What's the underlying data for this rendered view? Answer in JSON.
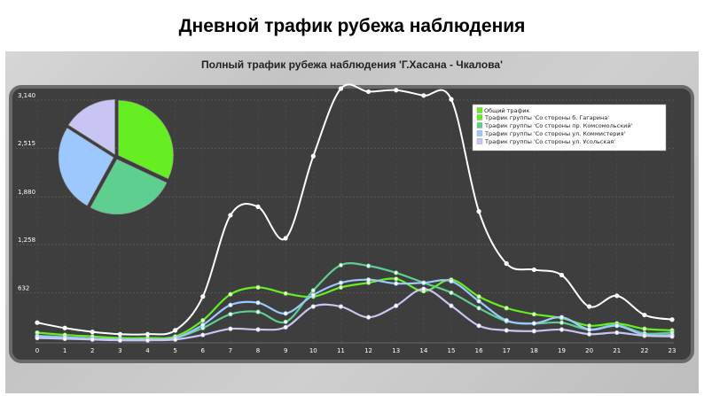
{
  "page": {
    "title": "Дневной трафик рубежа наблюдения"
  },
  "chart_data": {
    "type": "line",
    "title": "Полный трафик рубежа наблюдения 'Г.Хасана - Чкалова'",
    "x": [
      0,
      1,
      2,
      3,
      4,
      5,
      6,
      7,
      8,
      9,
      10,
      11,
      12,
      13,
      14,
      15,
      16,
      17,
      18,
      19,
      20,
      21,
      22,
      23
    ],
    "y_ticks": [
      "632",
      "1,258",
      "1,880",
      "2,515",
      "3,140"
    ],
    "ylim": [
      0,
      3140
    ],
    "grid": true,
    "legend_position": "top-right",
    "legend_title": "Общий трафик",
    "series": [
      {
        "name": "Общий трафик",
        "color": "#ffffff",
        "values": [
          240,
          170,
          120,
          90,
          90,
          140,
          580,
          1640,
          1750,
          1340,
          2410,
          3290,
          3250,
          3270,
          3200,
          3150,
          1690,
          1010,
          930,
          860,
          450,
          590,
          340,
          280
        ]
      },
      {
        "name": "Трафик группы 'Со стороны б. Гагарина'",
        "color": "#66ee22",
        "values": [
          110,
          80,
          60,
          40,
          40,
          60,
          270,
          610,
          700,
          620,
          580,
          700,
          760,
          810,
          650,
          800,
          580,
          430,
          350,
          300,
          200,
          230,
          160,
          140
        ]
      },
      {
        "name": "Трафик группы 'Со стороны пр. Комсомольский'",
        "color": "#5fcf90",
        "values": [
          70,
          50,
          30,
          20,
          20,
          40,
          170,
          350,
          380,
          250,
          660,
          990,
          980,
          890,
          760,
          630,
          430,
          260,
          230,
          240,
          150,
          210,
          100,
          110
        ]
      },
      {
        "name": "Трафик группы 'Со стороны ул. Коммистерия'",
        "color": "#9cc8ff",
        "values": [
          60,
          50,
          30,
          20,
          20,
          40,
          210,
          470,
          500,
          360,
          600,
          760,
          800,
          750,
          760,
          780,
          520,
          270,
          230,
          310,
          150,
          200,
          80,
          80
        ]
      },
      {
        "name": "Трафик группы 'Со стороны ул. Усольская'",
        "color": "#c8c4f4",
        "values": [
          40,
          30,
          20,
          10,
          10,
          20,
          80,
          160,
          150,
          180,
          450,
          450,
          310,
          460,
          680,
          460,
          200,
          140,
          130,
          150,
          90,
          110,
          70,
          60
        ]
      }
    ],
    "pie": {
      "slices": [
        {
          "name": "Трафик группы 'Со стороны б. Гагарина'",
          "value": 32,
          "color": "#66ee22"
        },
        {
          "name": "Трафик группы 'Со стороны пр. Комсомольский'",
          "value": 26,
          "color": "#5fcf90"
        },
        {
          "name": "Трафик группы 'Со стороны ул. Коммистерия'",
          "value": 26,
          "color": "#9cc8ff"
        },
        {
          "name": "Трафик группы 'Со стороны ул. Усольская'",
          "value": 16,
          "color": "#c8c4f4"
        }
      ]
    }
  }
}
